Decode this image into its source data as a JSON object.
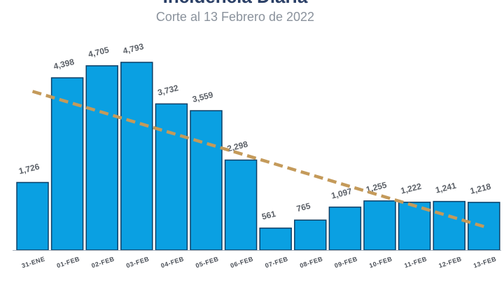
{
  "chart_data": {
    "type": "bar",
    "title": "Incidencia Diaria",
    "subtitle": "Corte al 13 Febrero de 2022",
    "categories": [
      "31-ENE",
      "01-FEB",
      "02-FEB",
      "03-FEB",
      "04-FEB",
      "05-FEB",
      "06-FEB",
      "07-FEB",
      "08-FEB",
      "09-FEB",
      "10-FEB",
      "11-FEB",
      "12-FEB",
      "13-FEB"
    ],
    "values": [
      1726,
      4398,
      4705,
      4793,
      3732,
      3559,
      2298,
      561,
      765,
      1097,
      1255,
      1222,
      1241,
      1218
    ],
    "value_labels": [
      "1,726",
      "4,398",
      "4,705",
      "4,793",
      "3,732",
      "3,559",
      "2,298",
      "561",
      "765",
      "1,097",
      "1,255",
      "1,222",
      "1,241",
      "1,218"
    ],
    "trendline": {
      "type": "linear",
      "style": "dashed",
      "color": "#c49a5a"
    },
    "ylim": [
      0,
      5000
    ],
    "grid": false,
    "colors": {
      "bar": "#0aa0e2",
      "bar_border": "#0c3f66",
      "baseline": "#a9b1bb"
    }
  }
}
